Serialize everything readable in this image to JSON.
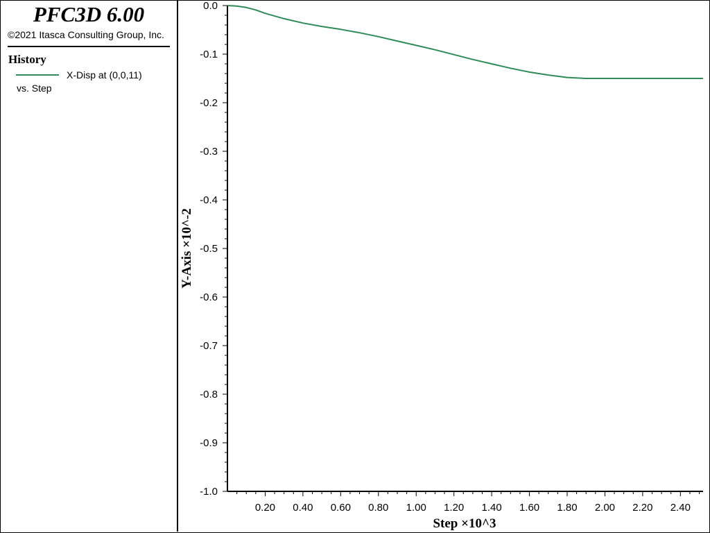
{
  "app": {
    "title": "PFC3D 6.00",
    "copyright": "©2021 Itasca Consulting Group, Inc."
  },
  "legend": {
    "section": "History",
    "entries": [
      {
        "label": "X-Disp at (0,0,11)",
        "color": "#2e8b57"
      }
    ],
    "vs_label": "vs. Step"
  },
  "chart_data": {
    "type": "line",
    "xlabel": "Step ×10^3",
    "ylabel": "Y-Axis ×10^-2",
    "xlim": [
      0,
      2.52
    ],
    "ylim": [
      -1.0,
      0.0
    ],
    "xticks": [
      "0.20",
      "0.40",
      "0.60",
      "0.80",
      "1.00",
      "1.20",
      "1.40",
      "1.60",
      "1.80",
      "2.00",
      "2.20",
      "2.40"
    ],
    "xtick_values": [
      0.2,
      0.4,
      0.6,
      0.8,
      1.0,
      1.2,
      1.4,
      1.6,
      1.8,
      2.0,
      2.2,
      2.4
    ],
    "yticks": [
      "0.0",
      "-0.1",
      "-0.2",
      "-0.3",
      "-0.4",
      "-0.5",
      "-0.6",
      "-0.7",
      "-0.8",
      "-0.9",
      "-1.0"
    ],
    "ytick_values": [
      0.0,
      -0.1,
      -0.2,
      -0.3,
      -0.4,
      -0.5,
      -0.6,
      -0.7,
      -0.8,
      -0.9,
      -1.0
    ],
    "grid": false,
    "series": [
      {
        "name": "X-Disp at (0,0,11)",
        "color": "#2e8b57",
        "x": [
          0.0,
          0.05,
          0.1,
          0.15,
          0.2,
          0.3,
          0.4,
          0.5,
          0.6,
          0.7,
          0.8,
          0.9,
          1.0,
          1.1,
          1.2,
          1.3,
          1.4,
          1.5,
          1.6,
          1.7,
          1.8,
          1.9,
          2.0,
          2.2,
          2.4,
          2.52
        ],
        "y": [
          0.0,
          -0.001,
          -0.004,
          -0.009,
          -0.016,
          -0.027,
          -0.036,
          -0.043,
          -0.049,
          -0.056,
          -0.064,
          -0.073,
          -0.082,
          -0.091,
          -0.101,
          -0.111,
          -0.12,
          -0.129,
          -0.137,
          -0.143,
          -0.148,
          -0.15,
          -0.15,
          -0.15,
          -0.15,
          -0.15
        ]
      }
    ]
  }
}
